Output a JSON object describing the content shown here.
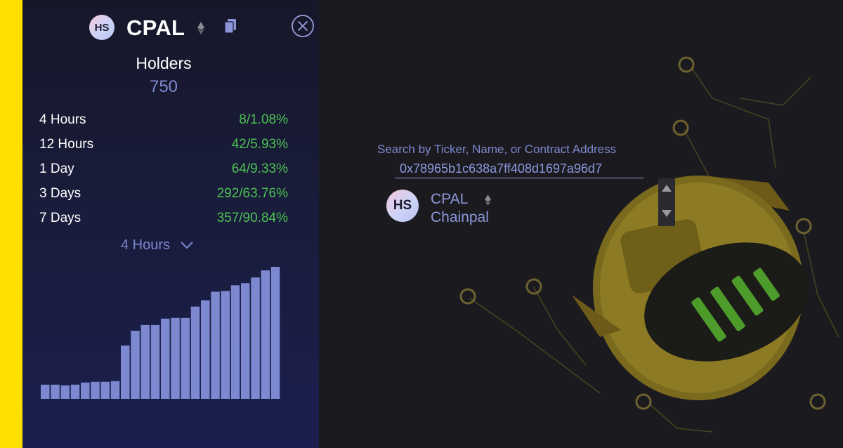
{
  "token": {
    "avatar_initials": "HS",
    "ticker": "CPAL",
    "name": "Chainpal",
    "chain_icon": "ethereum-icon"
  },
  "panel": {
    "holders_label": "Holders",
    "holders_value": "750",
    "stats": [
      {
        "label": "4 Hours",
        "value": "8/1.08%"
      },
      {
        "label": "12 Hours",
        "value": "42/5.93%"
      },
      {
        "label": "1 Day",
        "value": "64/9.33%"
      },
      {
        "label": "3 Days",
        "value": "292/63.76%"
      },
      {
        "label": "7 Days",
        "value": "357/90.84%"
      }
    ],
    "period_selected": "4 Hours"
  },
  "search": {
    "label": "Search by Ticker, Name, or Contract Address",
    "value": "0x78965b1c638a7ff408d1697a96d7"
  },
  "colors": {
    "accent_yellow": "#ffdf00",
    "muted_blue": "#7c88d0",
    "positive_green": "#4cc254",
    "bar_fill": "#7c88cf"
  },
  "chart_data": {
    "type": "bar",
    "values": [
      20,
      20,
      19,
      20,
      23,
      24,
      24,
      25,
      75,
      96,
      104,
      104,
      113,
      114,
      114,
      130,
      139,
      151,
      152,
      160,
      163,
      171,
      181,
      186
    ]
  }
}
